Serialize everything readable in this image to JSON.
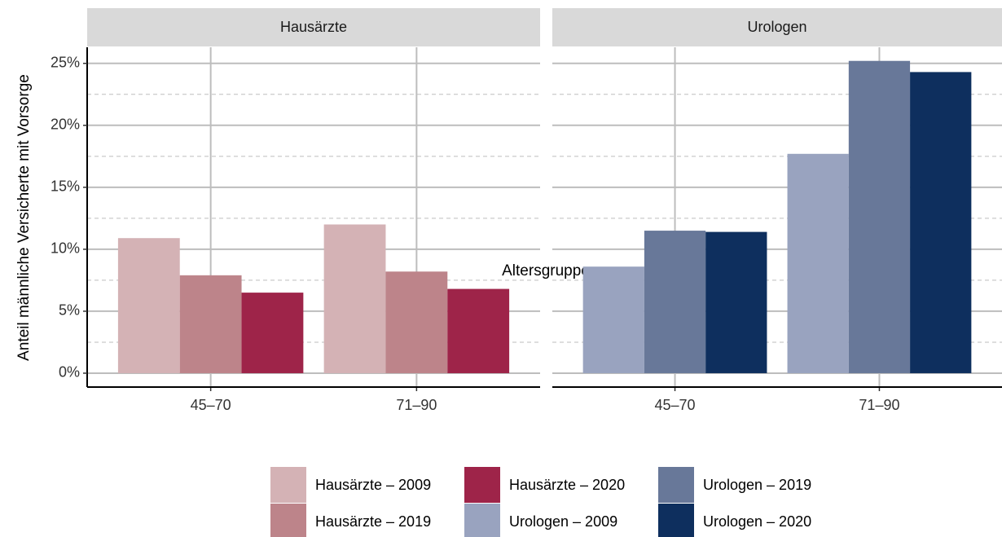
{
  "chart_data": {
    "type": "bar",
    "y_label": "Anteil männliche Versicherte mit Vorsorge",
    "x_label": "Altersgruppe",
    "ylim": [
      -1.12,
      26.3
    ],
    "yticks": [
      {
        "value": 0,
        "label": "0%"
      },
      {
        "value": 5,
        "label": "5%"
      },
      {
        "value": 10,
        "label": "10%"
      },
      {
        "value": 15,
        "label": "15%"
      },
      {
        "value": 20,
        "label": "20%"
      },
      {
        "value": 25,
        "label": "25%"
      }
    ],
    "minor_yticks": [
      2.5,
      7.5,
      12.5,
      17.5,
      22.5
    ],
    "grid": true,
    "legend": "bottom",
    "facets": [
      {
        "title": "Hausärzte",
        "categories": [
          "45–70",
          "71–90"
        ],
        "series": [
          {
            "name": "Hausärzte – 2009",
            "color": "#d4b2b5",
            "values": [
              10.9,
              12.0
            ]
          },
          {
            "name": "Hausärzte – 2019",
            "color": "#bd848a",
            "values": [
              7.9,
              8.2
            ]
          },
          {
            "name": "Hausärzte – 2020",
            "color": "#9e2449",
            "values": [
              6.5,
              6.8
            ]
          }
        ]
      },
      {
        "title": "Urologen",
        "categories": [
          "45–70",
          "71–90"
        ],
        "series": [
          {
            "name": "Urologen – 2009",
            "color": "#99a3bf",
            "values": [
              8.6,
              17.7
            ]
          },
          {
            "name": "Urologen – 2019",
            "color": "#687899",
            "values": [
              11.5,
              25.2
            ]
          },
          {
            "name": "Urologen – 2020",
            "color": "#0e2f5e",
            "values": [
              11.4,
              24.3
            ]
          }
        ]
      }
    ]
  }
}
